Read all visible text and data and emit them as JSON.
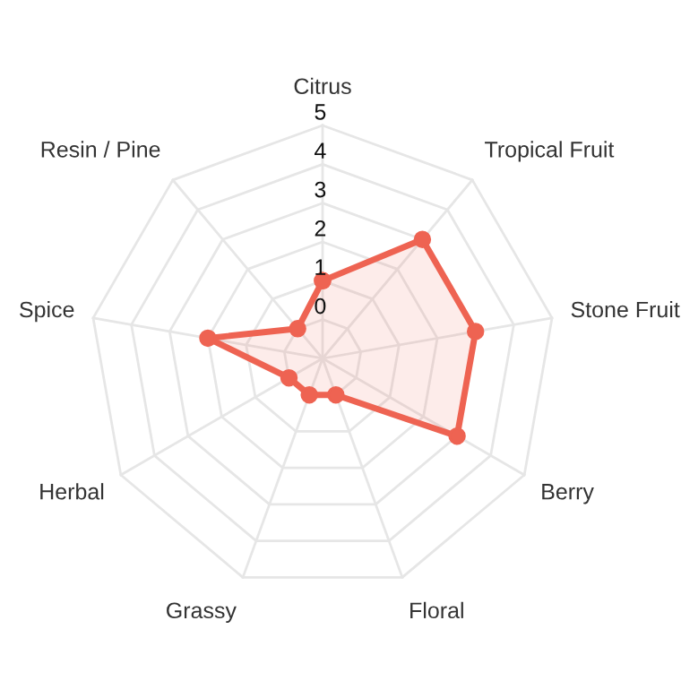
{
  "chart_data": {
    "type": "radar",
    "categories": [
      "Citrus",
      "Tropical Fruit",
      "Stone Fruit",
      "Berry",
      "Floral",
      "Grassy",
      "Herbal",
      "Spice",
      "Resin / Pine"
    ],
    "series": [
      {
        "color": "#ee6352",
        "values": [
          1,
          3,
          3,
          3,
          0,
          0,
          0,
          2,
          0
        ]
      }
    ],
    "ylim": [
      -1,
      5
    ],
    "yticks": [
      0,
      1,
      2,
      3,
      4,
      5
    ],
    "grid": true,
    "marker": "circle"
  }
}
